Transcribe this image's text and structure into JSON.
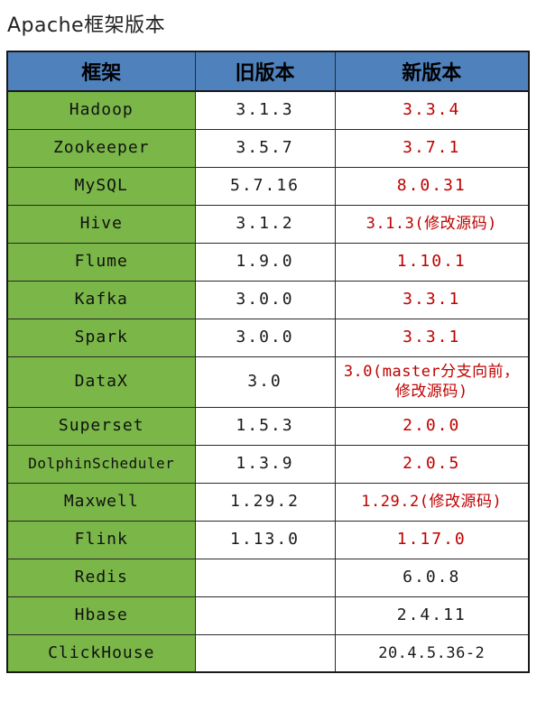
{
  "title": "Apache框架版本",
  "columns": [
    "框架",
    "旧版本",
    "新版本"
  ],
  "colors": {
    "header_bg": "#4f81bd",
    "framework_bg": "#7ab648",
    "updated_text": "#c00000",
    "border": "#2a2a2a"
  },
  "rows": [
    {
      "framework": "Hadoop",
      "old": "3.1.3",
      "new": "3.3.4",
      "new_highlight": true
    },
    {
      "framework": "Zookeeper",
      "old": "3.5.7",
      "new": "3.7.1",
      "new_highlight": true
    },
    {
      "framework": "MySQL",
      "old": "5.7.16",
      "new": "8.0.31",
      "new_highlight": true
    },
    {
      "framework": "Hive",
      "old": "3.1.2",
      "new": "3.1.3(修改源码)",
      "new_highlight": true
    },
    {
      "framework": "Flume",
      "old": "1.9.0",
      "new": "1.10.1",
      "new_highlight": true
    },
    {
      "framework": "Kafka",
      "old": "3.0.0",
      "new": "3.3.1",
      "new_highlight": true
    },
    {
      "framework": "Spark",
      "old": "3.0.0",
      "new": "3.3.1",
      "new_highlight": true
    },
    {
      "framework": "DataX",
      "old": "3.0",
      "new": "3.0(master分支向前，修改源码)",
      "new_highlight": true
    },
    {
      "framework": "Superset",
      "old": "1.5.3",
      "new": "2.0.0",
      "new_highlight": true
    },
    {
      "framework": "DolphinScheduler",
      "old": "1.3.9",
      "new": "2.0.5",
      "new_highlight": true
    },
    {
      "framework": "Maxwell",
      "old": "1.29.2",
      "new": "1.29.2(修改源码)",
      "new_highlight": true
    },
    {
      "framework": "Flink",
      "old": "1.13.0",
      "new": "1.17.0",
      "new_highlight": true
    },
    {
      "framework": "Redis",
      "old": "",
      "new": "6.0.8",
      "new_highlight": false
    },
    {
      "framework": "Hbase",
      "old": "",
      "new": "2.4.11",
      "new_highlight": false
    },
    {
      "framework": "ClickHouse",
      "old": "",
      "new": "20.4.5.36-2",
      "new_highlight": false
    }
  ]
}
